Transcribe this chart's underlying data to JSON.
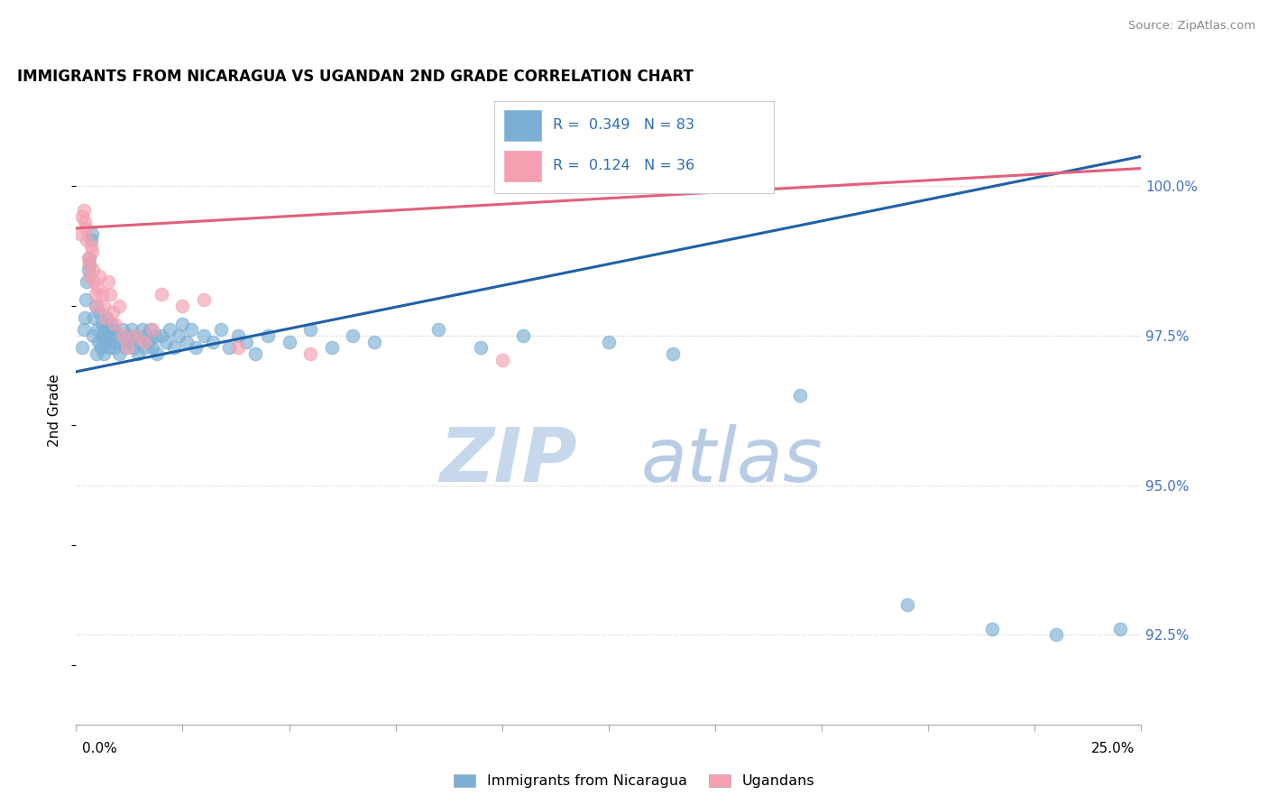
{
  "title": "IMMIGRANTS FROM NICARAGUA VS UGANDAN 2ND GRADE CORRELATION CHART",
  "source": "Source: ZipAtlas.com",
  "ylabel": "2nd Grade",
  "xlim": [
    0.0,
    25.0
  ],
  "ylim": [
    91.0,
    101.5
  ],
  "yticks": [
    92.5,
    95.0,
    97.5,
    100.0
  ],
  "ytick_labels": [
    "92.5%",
    "95.0%",
    "97.5%",
    "100.0%"
  ],
  "xtick_labels": [
    "0.0%",
    "25.0%"
  ],
  "blue_R": 0.349,
  "blue_N": 83,
  "pink_R": 0.124,
  "pink_N": 36,
  "blue_color": "#7BAFD4",
  "pink_color": "#F4A0B0",
  "blue_line_color": "#2160A8",
  "pink_line_color": "#E0607A",
  "legend_blue_label": "Immigrants from Nicaragua",
  "legend_pink_label": "Ugandans",
  "blue_line_x0": 0.0,
  "blue_line_y0": 96.9,
  "blue_line_x1": 25.0,
  "blue_line_y1": 100.5,
  "pink_line_x0": 0.0,
  "pink_line_y0": 99.3,
  "pink_line_x1": 25.0,
  "pink_line_y1": 100.3,
  "blue_scatter_x": [
    0.15,
    0.18,
    0.2,
    0.22,
    0.25,
    0.28,
    0.3,
    0.32,
    0.35,
    0.38,
    0.4,
    0.42,
    0.45,
    0.48,
    0.5,
    0.52,
    0.55,
    0.58,
    0.6,
    0.62,
    0.65,
    0.68,
    0.7,
    0.72,
    0.75,
    0.78,
    0.8,
    0.82,
    0.85,
    0.88,
    0.9,
    0.95,
    1.0,
    1.05,
    1.1,
    1.15,
    1.2,
    1.25,
    1.3,
    1.35,
    1.4,
    1.45,
    1.5,
    1.55,
    1.6,
    1.65,
    1.7,
    1.75,
    1.8,
    1.85,
    1.9,
    2.0,
    2.1,
    2.2,
    2.3,
    2.4,
    2.5,
    2.6,
    2.7,
    2.8,
    3.0,
    3.2,
    3.4,
    3.6,
    3.8,
    4.0,
    4.2,
    4.5,
    5.0,
    5.5,
    6.0,
    6.5,
    7.0,
    8.5,
    9.5,
    10.5,
    12.5,
    14.0,
    17.0,
    19.5,
    21.5,
    23.0,
    24.5
  ],
  "blue_scatter_y": [
    97.3,
    97.6,
    97.8,
    98.1,
    98.4,
    98.6,
    98.7,
    98.8,
    99.1,
    99.2,
    97.5,
    97.8,
    98.0,
    97.2,
    97.6,
    97.4,
    97.9,
    97.3,
    97.7,
    97.5,
    97.2,
    97.6,
    97.4,
    97.8,
    97.6,
    97.3,
    97.5,
    97.7,
    97.4,
    97.6,
    97.3,
    97.5,
    97.2,
    97.4,
    97.6,
    97.3,
    97.5,
    97.4,
    97.6,
    97.3,
    97.5,
    97.2,
    97.4,
    97.6,
    97.3,
    97.5,
    97.4,
    97.6,
    97.3,
    97.5,
    97.2,
    97.5,
    97.4,
    97.6,
    97.3,
    97.5,
    97.7,
    97.4,
    97.6,
    97.3,
    97.5,
    97.4,
    97.6,
    97.3,
    97.5,
    97.4,
    97.2,
    97.5,
    97.4,
    97.6,
    97.3,
    97.5,
    97.4,
    97.6,
    97.3,
    97.5,
    97.4,
    97.2,
    96.5,
    93.0,
    92.6,
    92.5,
    92.6
  ],
  "pink_scatter_x": [
    0.1,
    0.15,
    0.18,
    0.2,
    0.22,
    0.25,
    0.28,
    0.3,
    0.32,
    0.35,
    0.38,
    0.4,
    0.42,
    0.45,
    0.48,
    0.5,
    0.55,
    0.6,
    0.65,
    0.7,
    0.75,
    0.8,
    0.85,
    0.9,
    1.0,
    1.1,
    1.2,
    1.4,
    1.6,
    1.8,
    2.0,
    2.5,
    3.0,
    3.8,
    5.5,
    10.0
  ],
  "pink_scatter_y": [
    99.2,
    99.5,
    99.6,
    99.4,
    99.3,
    99.1,
    98.8,
    98.5,
    98.7,
    99.0,
    98.9,
    98.6,
    98.4,
    98.2,
    98.0,
    98.3,
    98.5,
    98.2,
    98.0,
    97.8,
    98.4,
    98.2,
    97.9,
    97.7,
    98.0,
    97.5,
    97.3,
    97.5,
    97.4,
    97.6,
    98.2,
    98.0,
    98.1,
    97.3,
    97.2,
    97.1
  ]
}
